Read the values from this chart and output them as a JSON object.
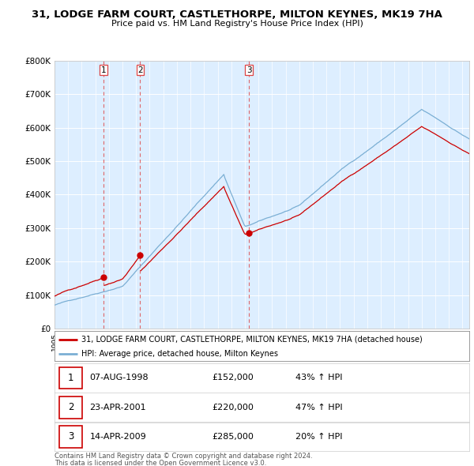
{
  "title": "31, LODGE FARM COURT, CASTLETHORPE, MILTON KEYNES, MK19 7HA",
  "subtitle": "Price paid vs. HM Land Registry's House Price Index (HPI)",
  "hpi_label": "HPI: Average price, detached house, Milton Keynes",
  "property_label": "31, LODGE FARM COURT, CASTLETHORPE, MILTON KEYNES, MK19 7HA (detached house)",
  "footer1": "Contains HM Land Registry data © Crown copyright and database right 2024.",
  "footer2": "This data is licensed under the Open Government Licence v3.0.",
  "sales": [
    {
      "num": 1,
      "date": "07-AUG-1998",
      "price": 152000,
      "hpi_change": "43% ↑ HPI",
      "year": 1998.6
    },
    {
      "num": 2,
      "date": "23-APR-2001",
      "price": 220000,
      "hpi_change": "47% ↑ HPI",
      "year": 2001.3
    },
    {
      "num": 3,
      "date": "14-APR-2009",
      "price": 285000,
      "hpi_change": "20% ↑ HPI",
      "year": 2009.3
    }
  ],
  "hpi_color": "#7bafd4",
  "property_color": "#cc0000",
  "vline_color": "#dd4444",
  "ylim": [
    0,
    800000
  ],
  "xlim_start": 1995.0,
  "xlim_end": 2025.5,
  "background_color": "#ffffff",
  "plot_bg_color": "#ddeeff",
  "grid_color": "#ffffff",
  "legend_box_color": "#cc0000",
  "sale_years": [
    1998.6,
    2001.3,
    2009.3
  ],
  "sale_prices": [
    152000,
    220000,
    285000
  ]
}
